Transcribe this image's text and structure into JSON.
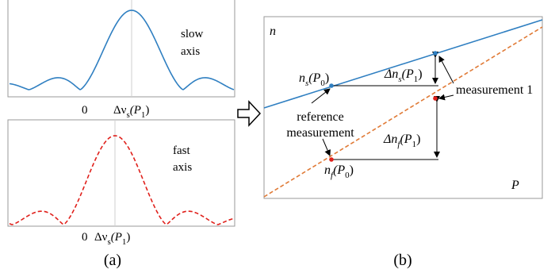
{
  "colors": {
    "slow": "#2f7fc1",
    "fast": "#e0201b",
    "fast_line": "#e07a36",
    "frame": "#9a9a9a",
    "guide": "#bdbdbd",
    "text": "#000000"
  },
  "panel_a": {
    "caption": "(a)",
    "top_plot": {
      "label_line1": "slow",
      "label_line2": "axis",
      "tick_zero": "0",
      "tick_delta": "Δν",
      "tick_delta_sub": "s",
      "tick_delta_arg": "(P",
      "tick_delta_arg_sub": "1",
      "tick_delta_close": ")"
    },
    "bottom_plot": {
      "label_line1": "fast",
      "label_line2": "axis",
      "tick_zero": "0",
      "tick_delta": "Δν",
      "tick_delta_sub": "s",
      "tick_delta_arg": "(P",
      "tick_delta_arg_sub": "1",
      "tick_delta_close": ")"
    }
  },
  "panel_b": {
    "caption": "(b)",
    "y_label": "n",
    "x_label": "P",
    "ns_p0": {
      "main": "n",
      "sub": "s",
      "arg": "(P",
      "arg_sub": "0",
      "close": ")"
    },
    "nf_p0": {
      "main": "n",
      "sub": "f",
      "arg": "(P",
      "arg_sub": "0",
      "close": ")"
    },
    "delta_ns": {
      "main": "Δn",
      "sub": "s",
      "arg": "(P",
      "arg_sub": "1",
      "close": ")"
    },
    "delta_nf": {
      "main": "Δn",
      "sub": "f",
      "arg": "(P",
      "arg_sub": "1",
      "close": ")"
    },
    "reference_line1": "reference",
    "reference_line2": "measurement",
    "measurement1": "measurement 1"
  }
}
